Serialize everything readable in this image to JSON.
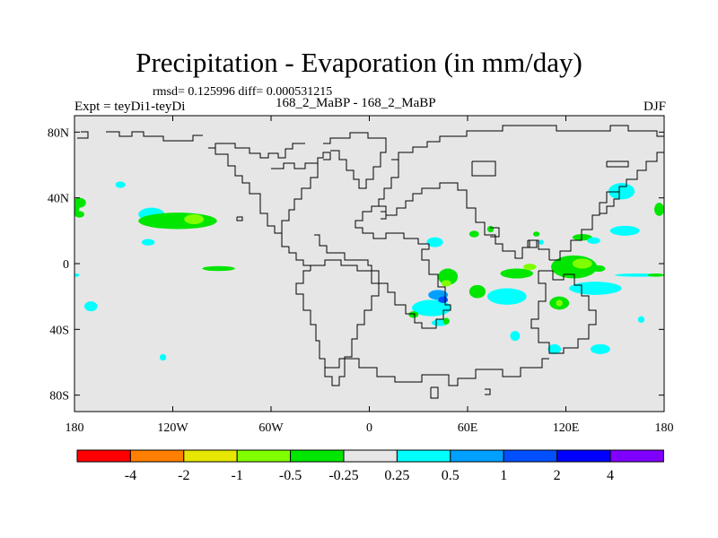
{
  "header": {
    "title": "Precipitation - Evaporation (in mm/day)",
    "stats": "rmsd= 0.125996 diff= 0.000531215",
    "experiment": "Expt = teyDi1-teyDi",
    "center_label": "168_2_MaBP - 168_2_MaBP",
    "season": "DJF"
  },
  "chart_data": {
    "type": "heatmap",
    "title": "Precipitation - Evaporation (in mm/day)",
    "subtitle": "rmsd= 0.125996 diff= 0.000531215",
    "xlabel": "",
    "ylabel": "",
    "x_range": [
      -180,
      180
    ],
    "y_range": [
      -90,
      90
    ],
    "x_ticks": [
      {
        "value": -180,
        "label": "180"
      },
      {
        "value": -120,
        "label": "120W"
      },
      {
        "value": -60,
        "label": "60W"
      },
      {
        "value": 0,
        "label": "0"
      },
      {
        "value": 60,
        "label": "60E"
      },
      {
        "value": 120,
        "label": "120E"
      },
      {
        "value": 180,
        "label": "180"
      }
    ],
    "y_ticks": [
      {
        "value": 80,
        "label": "80N"
      },
      {
        "value": 40,
        "label": "40N"
      },
      {
        "value": 0,
        "label": "0"
      },
      {
        "value": -40,
        "label": "40S"
      },
      {
        "value": -80,
        "label": "80S"
      }
    ],
    "background_color": "#e6e6e6",
    "colorbar": {
      "colors": [
        "#ff0000",
        "#ff8000",
        "#e6e600",
        "#80ff00",
        "#00e600",
        "#e6e6e6",
        "#00ffff",
        "#00a0ff",
        "#0050ff",
        "#0000ff",
        "#8000ff"
      ],
      "labels": [
        "-4",
        "-2",
        "-1",
        "-0.5",
        "-0.25",
        "0.25",
        "0.5",
        "1",
        "2",
        "4"
      ]
    },
    "anomalies": [
      {
        "lon": -177,
        "lat": 37,
        "rx": 4,
        "ry": 3,
        "value": -0.3
      },
      {
        "lon": -177,
        "lat": 30,
        "rx": 3,
        "ry": 2,
        "value": -0.3
      },
      {
        "lon": -180,
        "lat": 34,
        "rx": 3,
        "ry": 4,
        "value": -0.3
      },
      {
        "lon": -152,
        "lat": 48,
        "rx": 3,
        "ry": 2,
        "value": 0.3
      },
      {
        "lon": -133,
        "lat": 30,
        "rx": 8,
        "ry": 4,
        "value": 0.3
      },
      {
        "lon": -135,
        "lat": 13,
        "rx": 4,
        "ry": 2,
        "value": 0.3
      },
      {
        "lon": -117,
        "lat": 26,
        "rx": 24,
        "ry": 5,
        "value": -0.3
      },
      {
        "lon": -107,
        "lat": 27,
        "rx": 6,
        "ry": 3,
        "value": -0.6
      },
      {
        "lon": -92,
        "lat": -3,
        "rx": 10,
        "ry": 1.5,
        "value": -0.3
      },
      {
        "lon": -179,
        "lat": -7,
        "rx": 2,
        "ry": 1,
        "value": 0.3
      },
      {
        "lon": -170,
        "lat": -26,
        "rx": 4,
        "ry": 3,
        "value": 0.3
      },
      {
        "lon": -126,
        "lat": -57,
        "rx": 2,
        "ry": 2,
        "value": 0.3
      },
      {
        "lon": 38,
        "lat": -27,
        "rx": 12,
        "ry": 5,
        "value": 0.3
      },
      {
        "lon": 42,
        "lat": -19,
        "rx": 6,
        "ry": 3,
        "value": 0.6
      },
      {
        "lon": 45,
        "lat": -22,
        "rx": 3,
        "ry": 2,
        "value": 1.2
      },
      {
        "lon": 48,
        "lat": -8,
        "rx": 6,
        "ry": 5,
        "value": -0.3
      },
      {
        "lon": 47,
        "lat": -12,
        "rx": 3,
        "ry": 2,
        "value": -0.6
      },
      {
        "lon": 43,
        "lat": -36,
        "rx": 5,
        "ry": 2,
        "value": 0.3
      },
      {
        "lon": 27,
        "lat": -31,
        "rx": 3,
        "ry": 2,
        "value": -0.3
      },
      {
        "lon": 47,
        "lat": -35,
        "rx": 2,
        "ry": 2,
        "value": -0.3
      },
      {
        "lon": 40,
        "lat": 13,
        "rx": 5,
        "ry": 3,
        "value": 0.3
      },
      {
        "lon": 64,
        "lat": 18,
        "rx": 3,
        "ry": 2,
        "value": -0.3
      },
      {
        "lon": 74,
        "lat": 21,
        "rx": 2,
        "ry": 2,
        "value": -0.3
      },
      {
        "lon": 66,
        "lat": -17,
        "rx": 5,
        "ry": 4,
        "value": -0.3
      },
      {
        "lon": 84,
        "lat": -20,
        "rx": 12,
        "ry": 5,
        "value": 0.3
      },
      {
        "lon": 90,
        "lat": -6,
        "rx": 10,
        "ry": 3,
        "value": -0.3
      },
      {
        "lon": 98,
        "lat": -2,
        "rx": 4,
        "ry": 2,
        "value": -0.6
      },
      {
        "lon": 116,
        "lat": -24,
        "rx": 6,
        "ry": 4,
        "value": -0.3
      },
      {
        "lon": 116,
        "lat": -24,
        "rx": 2,
        "ry": 2,
        "value": -0.6
      },
      {
        "lon": 138,
        "lat": -15,
        "rx": 16,
        "ry": 4,
        "value": 0.3
      },
      {
        "lon": 125,
        "lat": -2,
        "rx": 14,
        "ry": 7,
        "value": -0.3
      },
      {
        "lon": 130,
        "lat": 0,
        "rx": 6,
        "ry": 3,
        "value": -0.6
      },
      {
        "lon": 140,
        "lat": -3,
        "rx": 4,
        "ry": 2,
        "value": -0.3
      },
      {
        "lon": 130,
        "lat": 16,
        "rx": 6,
        "ry": 2,
        "value": -0.3
      },
      {
        "lon": 137,
        "lat": 14,
        "rx": 4,
        "ry": 2,
        "value": 0.3
      },
      {
        "lon": 156,
        "lat": 20,
        "rx": 9,
        "ry": 3,
        "value": 0.3
      },
      {
        "lon": 102,
        "lat": 18,
        "rx": 2,
        "ry": 1.5,
        "value": -0.3
      },
      {
        "lon": 105,
        "lat": 13,
        "rx": 1.5,
        "ry": 1.5,
        "value": 0.3
      },
      {
        "lon": 154,
        "lat": 44,
        "rx": 8,
        "ry": 5,
        "value": 0.3
      },
      {
        "lon": 177,
        "lat": 33,
        "rx": 3,
        "ry": 4,
        "value": -0.3
      },
      {
        "lon": 89,
        "lat": -44,
        "rx": 3,
        "ry": 3,
        "value": 0.3
      },
      {
        "lon": 113,
        "lat": -52,
        "rx": 4,
        "ry": 3,
        "value": 0.3
      },
      {
        "lon": 141,
        "lat": -52,
        "rx": 6,
        "ry": 3,
        "value": 0.3
      },
      {
        "lon": 165,
        "lat": -7,
        "rx": 15,
        "ry": 1,
        "value": 0.3
      },
      {
        "lon": 175,
        "lat": -7,
        "rx": 5,
        "ry": 1,
        "value": -0.3
      },
      {
        "lon": 166,
        "lat": -34,
        "rx": 2,
        "ry": 2,
        "value": 0.3
      }
    ]
  }
}
